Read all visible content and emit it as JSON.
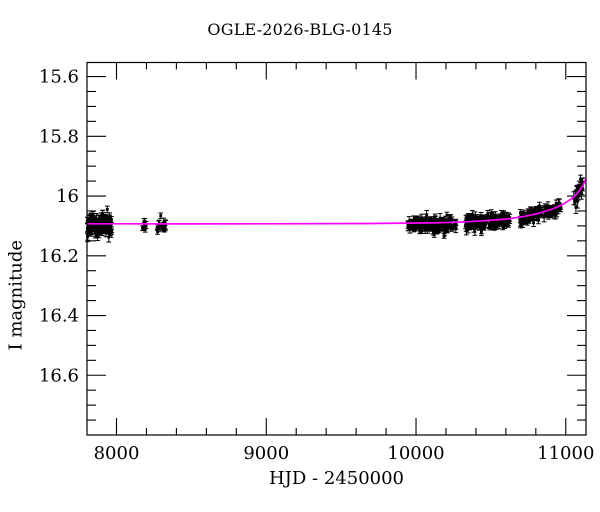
{
  "title": "OGLE-2026-BLG-0145",
  "colors": {
    "background": "#ffffff",
    "frame": "#000000",
    "data_points": "#000000",
    "model_curve": "#ff00ff",
    "text": "#000000"
  },
  "chart_data": {
    "type": "scatter",
    "title": "OGLE-2026-BLG-0145",
    "xlabel": "HJD - 2450000",
    "ylabel": "I magnitude",
    "xlim": [
      7803,
      11135
    ],
    "ylim": [
      16.8,
      15.553
    ],
    "y_inverted": true,
    "grid": false,
    "legend": null,
    "x_ticks": [
      {
        "value": 8000,
        "label": "8000"
      },
      {
        "value": 9000,
        "label": "9000"
      },
      {
        "value": 10000,
        "label": "10000"
      },
      {
        "value": 11000,
        "label": "11000"
      }
    ],
    "x_minor_step": 200,
    "y_ticks": [
      {
        "value": 15.6,
        "label": "15.6"
      },
      {
        "value": 15.8,
        "label": "15.8"
      },
      {
        "value": 16.0,
        "label": "16"
      },
      {
        "value": 16.2,
        "label": "16.2"
      },
      {
        "value": 16.4,
        "label": "16.4"
      },
      {
        "value": 16.6,
        "label": "16.6"
      }
    ],
    "y_minor_step": 0.05,
    "baseline_mag": 16.094,
    "model_curve": [
      [
        7803,
        16.093
      ],
      [
        9000,
        16.093
      ],
      [
        9700,
        16.092
      ],
      [
        10100,
        16.09
      ],
      [
        10300,
        16.087
      ],
      [
        10450,
        16.083
      ],
      [
        10600,
        16.077
      ],
      [
        10700,
        16.07
      ],
      [
        10800,
        16.06
      ],
      [
        10900,
        16.045
      ],
      [
        10975,
        16.029
      ],
      [
        11030,
        16.012
      ],
      [
        11070,
        15.995
      ],
      [
        11100,
        15.975
      ],
      [
        11120,
        15.958
      ],
      [
        11135,
        15.942
      ]
    ],
    "seasons": [
      {
        "x_start": 7805,
        "x_end": 7968,
        "n": 150,
        "scatter": 0.016,
        "err": 0.012,
        "bias": 0.003
      },
      {
        "x_start": 8148,
        "x_end": 8200,
        "n": 8,
        "scatter": 0.009,
        "err": 0.011,
        "bias": 0.008
      },
      {
        "x_start": 8265,
        "x_end": 8330,
        "n": 16,
        "scatter": 0.018,
        "err": 0.013,
        "bias": 0.004
      },
      {
        "x_start": 9946,
        "x_end": 10268,
        "n": 170,
        "scatter": 0.011,
        "err": 0.011,
        "bias": 0.006
      },
      {
        "x_start": 10330,
        "x_end": 10630,
        "n": 150,
        "scatter": 0.011,
        "err": 0.011,
        "bias": 0.006
      },
      {
        "x_start": 10695,
        "x_end": 10972,
        "n": 130,
        "scatter": 0.01,
        "err": 0.011,
        "bias": 0.004
      },
      {
        "x_start": 11052,
        "x_end": 11118,
        "n": 26,
        "scatter": 0.013,
        "err": 0.017,
        "bias": 0.002
      }
    ],
    "seed": 7
  }
}
